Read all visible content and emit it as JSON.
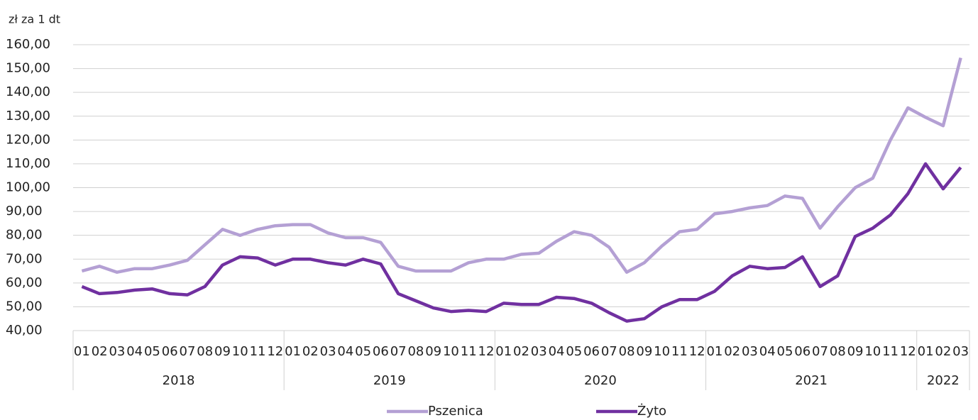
{
  "chart_data": {
    "type": "line",
    "y_axis_label": "zł za 1 dt",
    "categories": [
      "01",
      "02",
      "03",
      "04",
      "05",
      "06",
      "07",
      "08",
      "09",
      "10",
      "11",
      "12",
      "01",
      "02",
      "03",
      "04",
      "05",
      "06",
      "07",
      "08",
      "09",
      "10",
      "11",
      "12",
      "01",
      "02",
      "03",
      "04",
      "05",
      "06",
      "07",
      "08",
      "09",
      "10",
      "11",
      "12",
      "01",
      "02",
      "03",
      "04",
      "05",
      "06",
      "07",
      "08",
      "09",
      "10",
      "11",
      "12",
      "01",
      "02",
      "03"
    ],
    "groups": [
      {
        "label": "2018",
        "size": 12
      },
      {
        "label": "2019",
        "size": 12
      },
      {
        "label": "2020",
        "size": 12
      },
      {
        "label": "2021",
        "size": 12
      },
      {
        "label": "2022",
        "size": 3
      }
    ],
    "series": [
      {
        "name": "Pszenica",
        "color": "#b4a0d4",
        "values": [
          65,
          67,
          64.5,
          66,
          66,
          67.5,
          69.5,
          76,
          82.5,
          80,
          82.5,
          84,
          84.5,
          84.5,
          81,
          79,
          79,
          77,
          67,
          65,
          65,
          65,
          68.5,
          70,
          70,
          72,
          72.5,
          77.5,
          81.5,
          80,
          75,
          64.5,
          68.5,
          75.5,
          81.5,
          82.5,
          89,
          90,
          91.5,
          92.5,
          96.5,
          95.5,
          83,
          92,
          100,
          104,
          120,
          133.5,
          129.5,
          126,
          154.5
        ]
      },
      {
        "name": "Żyto",
        "color": "#7030a0",
        "values": [
          58.5,
          55.5,
          56,
          57,
          57.5,
          55.5,
          55,
          58.5,
          67.5,
          71,
          70.5,
          67.5,
          70,
          70,
          68.5,
          67.5,
          70,
          68,
          55.5,
          52.5,
          49.5,
          48,
          48.5,
          48,
          51.5,
          51,
          51,
          54,
          53.5,
          51.5,
          47.5,
          44,
          45,
          50,
          53,
          53,
          56.5,
          63,
          67,
          66,
          66.5,
          71,
          58.5,
          63,
          79.5,
          83,
          88.5,
          97.5,
          110,
          99.5,
          108.5
        ]
      }
    ],
    "ylim": [
      40,
      160
    ],
    "yticks": [
      {
        "value": 40,
        "label": "40,00"
      },
      {
        "value": 50,
        "label": "50,00"
      },
      {
        "value": 60,
        "label": "60,00"
      },
      {
        "value": 70,
        "label": "70,00"
      },
      {
        "value": 80,
        "label": "80,00"
      },
      {
        "value": 90,
        "label": "90,00"
      },
      {
        "value": 100,
        "label": "100,00"
      },
      {
        "value": 110,
        "label": "110,00"
      },
      {
        "value": 120,
        "label": "120,00"
      },
      {
        "value": 130,
        "label": "130,00"
      },
      {
        "value": 140,
        "label": "140,00"
      },
      {
        "value": 150,
        "label": "150,00"
      },
      {
        "value": 160,
        "label": "160,00"
      }
    ],
    "grid": true,
    "legend": "bottom"
  }
}
